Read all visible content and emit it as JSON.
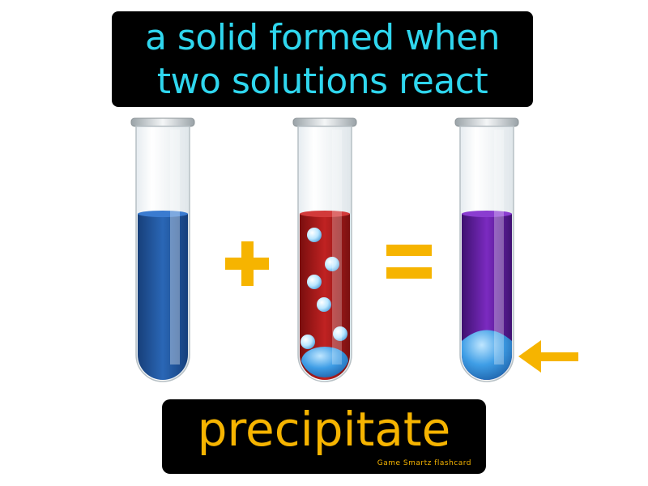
{
  "definition": {
    "line1": "a solid formed when",
    "line2": "two solutions react"
  },
  "term": "precipitate",
  "brand": "Game Smartz flashcard",
  "operators": {
    "plus": "+",
    "equals": "="
  },
  "colors": {
    "definition_text": "#2fd6ee",
    "term_text": "#f6b400",
    "operator": "#f6b400",
    "tube1_liquid": "#1f5aa6",
    "tube2_liquid": "#b01818",
    "tube3_liquid": "#6a22a6",
    "precipitate": "#3f9ee6"
  },
  "tubes": [
    {
      "name": "blue-solution",
      "fill_level": 0.62
    },
    {
      "name": "red-solution-with-bubbles",
      "fill_level": 0.62
    },
    {
      "name": "purple-solution-with-precipitate",
      "fill_level": 0.62
    }
  ],
  "pointer": "arrow-left-icon"
}
